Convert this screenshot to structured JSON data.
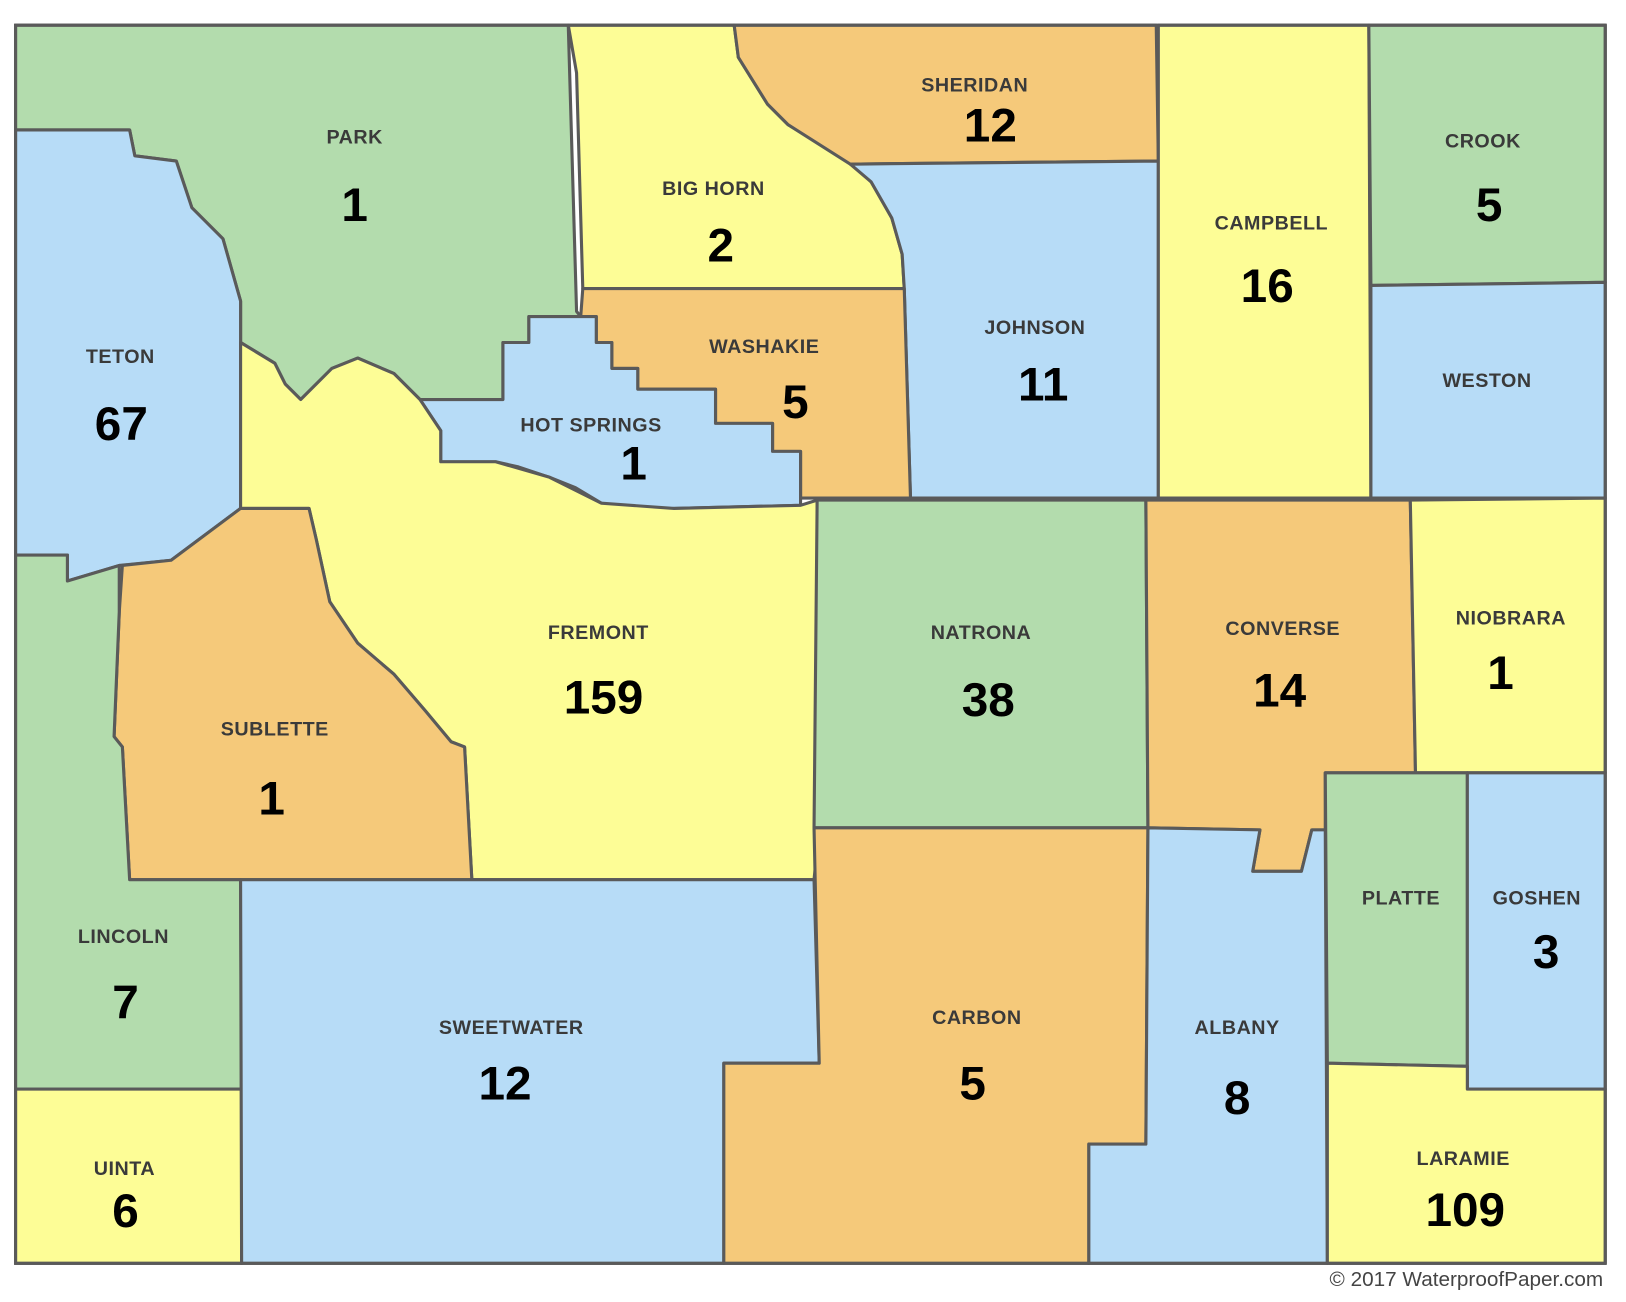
{
  "colors": {
    "green": "#b3dcad",
    "yellow": "#fdfd96",
    "blue": "#b7dcf7",
    "orange": "#f5c97a",
    "border": "#5a5a5a"
  },
  "counties": [
    {
      "name": "PARK",
      "value": "1",
      "fill": "green"
    },
    {
      "name": "BIG HORN",
      "value": "2",
      "fill": "yellow"
    },
    {
      "name": "SHERIDAN",
      "value": "12",
      "fill": "orange"
    },
    {
      "name": "JOHNSON",
      "value": "11",
      "fill": "blue"
    },
    {
      "name": "WASHAKIE",
      "value": "5",
      "fill": "orange"
    },
    {
      "name": "HOT SPRINGS",
      "value": "1",
      "fill": "blue"
    },
    {
      "name": "CAMPBELL",
      "value": "16",
      "fill": "yellow"
    },
    {
      "name": "CROOK",
      "value": "5",
      "fill": "green"
    },
    {
      "name": "WESTON",
      "value": "",
      "fill": "blue"
    },
    {
      "name": "TETON",
      "value": "67",
      "fill": "blue"
    },
    {
      "name": "FREMONT",
      "value": "159",
      "fill": "yellow"
    },
    {
      "name": "SUBLETTE",
      "value": "1",
      "fill": "orange"
    },
    {
      "name": "NATRONA",
      "value": "38",
      "fill": "green"
    },
    {
      "name": "CONVERSE",
      "value": "14",
      "fill": "orange"
    },
    {
      "name": "NIOBRARA",
      "value": "1",
      "fill": "yellow"
    },
    {
      "name": "LINCOLN",
      "value": "7",
      "fill": "green"
    },
    {
      "name": "UINTA",
      "value": "6",
      "fill": "yellow"
    },
    {
      "name": "SWEETWATER",
      "value": "12",
      "fill": "blue"
    },
    {
      "name": "CARBON",
      "value": "5",
      "fill": "orange"
    },
    {
      "name": "ALBANY",
      "value": "8",
      "fill": "blue"
    },
    {
      "name": "PLATTE",
      "value": "",
      "fill": "green"
    },
    {
      "name": "GOSHEN",
      "value": "3",
      "fill": "blue"
    },
    {
      "name": "LARAMIE",
      "value": "109",
      "fill": "yellow"
    }
  ],
  "copyright": "© 2017 WaterproofPaper.com"
}
